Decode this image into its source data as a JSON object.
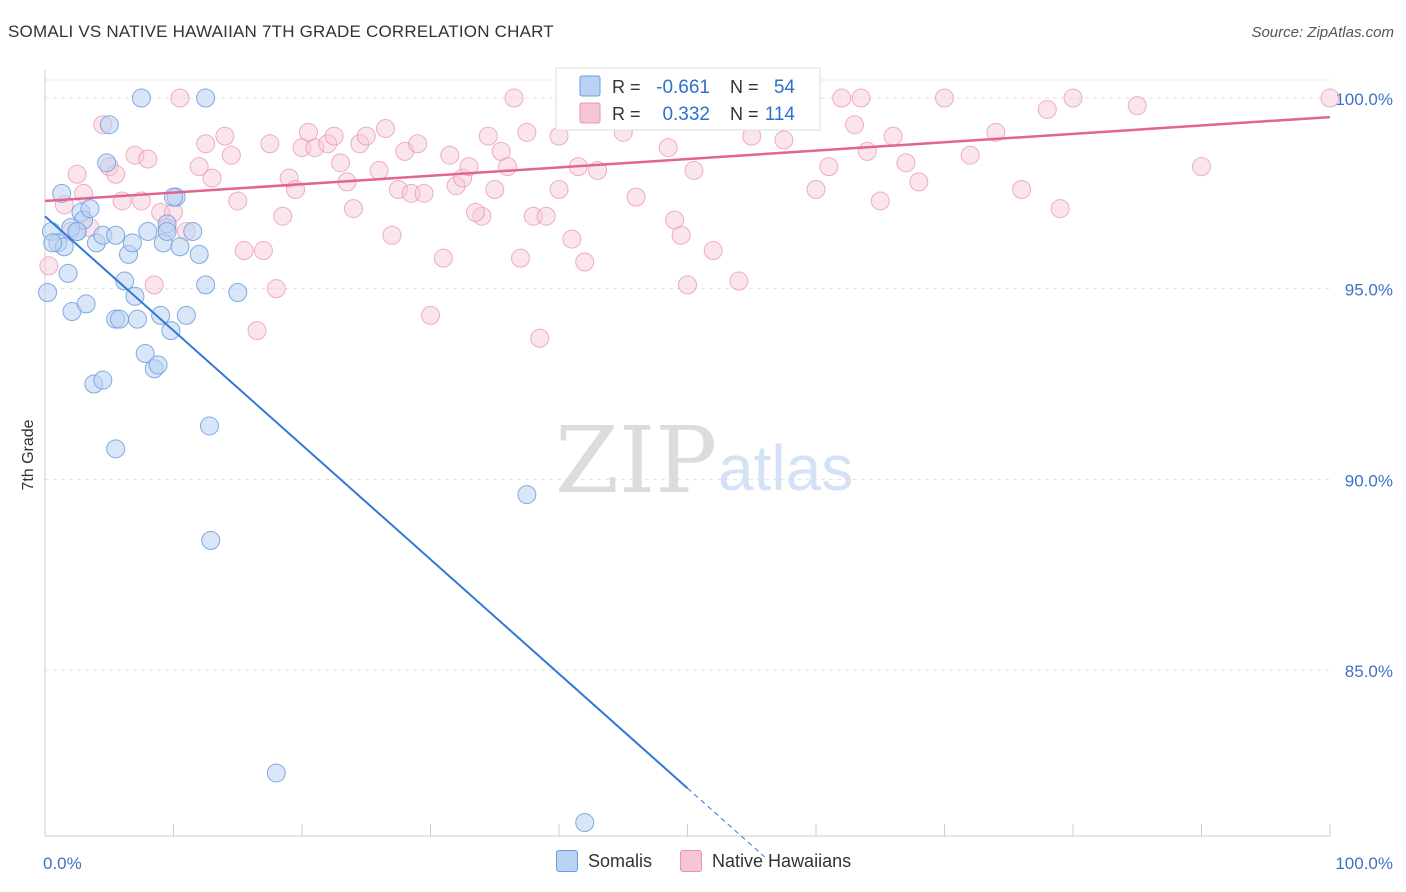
{
  "title": "SOMALI VS NATIVE HAWAIIAN 7TH GRADE CORRELATION CHART",
  "source": "Source: ZipAtlas.com",
  "watermark": {
    "zip": "ZIP",
    "atlas": "atlas"
  },
  "chart_data": {
    "type": "scatter",
    "xlabel": "",
    "ylabel": "7th Grade",
    "xlim": [
      0,
      100
    ],
    "ylim": [
      80,
      100.8
    ],
    "x_tick_labels": [
      {
        "value": 0,
        "label": "0.0%"
      },
      {
        "value": 100,
        "label": "100.0%"
      }
    ],
    "y_tick_labels": [
      {
        "value": 100,
        "label": "100.0%"
      },
      {
        "value": 95,
        "label": "95.0%"
      },
      {
        "value": 90,
        "label": "90.0%"
      },
      {
        "value": 85,
        "label": "85.0%"
      }
    ],
    "stats_box": [
      {
        "series": "Somalis",
        "r_label": "R =",
        "r": "-0.661",
        "n_label": "N =",
        "n": "54"
      },
      {
        "series": "Native Hawaiians",
        "r_label": "R =",
        "r": "0.332",
        "n_label": "N =",
        "n": "114"
      }
    ],
    "series": [
      {
        "name": "Somalis",
        "color": "#6b9ee0",
        "fill": "#b9d1f3",
        "line_color": "#2e79d6",
        "trend": {
          "x0": 0,
          "y0": 96.9,
          "x1": 50,
          "y1": 81.9,
          "dash_to_x": 56,
          "dash_to_y": 80.1
        },
        "points": [
          [
            0.5,
            96.5
          ],
          [
            1.0,
            96.2
          ],
          [
            0.2,
            94.9
          ],
          [
            1.3,
            97.5
          ],
          [
            1.8,
            95.4
          ],
          [
            2.1,
            94.4
          ],
          [
            2.5,
            96.5
          ],
          [
            2.8,
            97.0
          ],
          [
            3.0,
            96.8
          ],
          [
            3.2,
            94.6
          ],
          [
            3.5,
            97.1
          ],
          [
            4.0,
            96.2
          ],
          [
            4.5,
            96.4
          ],
          [
            4.8,
            98.3
          ],
          [
            5.0,
            99.3
          ],
          [
            5.5,
            94.2
          ],
          [
            5.8,
            94.2
          ],
          [
            6.2,
            95.2
          ],
          [
            6.5,
            95.9
          ],
          [
            6.8,
            96.2
          ],
          [
            7.0,
            94.8
          ],
          [
            7.2,
            94.2
          ],
          [
            7.5,
            100.0
          ],
          [
            7.8,
            93.3
          ],
          [
            8.0,
            96.5
          ],
          [
            8.5,
            92.9
          ],
          [
            8.8,
            93.0
          ],
          [
            9.0,
            94.3
          ],
          [
            9.2,
            96.2
          ],
          [
            9.5,
            96.7
          ],
          [
            9.8,
            93.9
          ],
          [
            10.2,
            97.4
          ],
          [
            10.5,
            96.1
          ],
          [
            11.0,
            94.3
          ],
          [
            11.5,
            96.5
          ],
          [
            12.0,
            95.9
          ],
          [
            12.5,
            100.0
          ],
          [
            1.5,
            96.1
          ],
          [
            2.0,
            96.6
          ],
          [
            3.8,
            92.5
          ],
          [
            4.5,
            92.6
          ],
          [
            5.5,
            90.8
          ],
          [
            12.5,
            95.1
          ],
          [
            12.8,
            91.4
          ],
          [
            12.9,
            88.4
          ],
          [
            15.0,
            94.9
          ],
          [
            18.0,
            82.3
          ],
          [
            37.5,
            89.6
          ],
          [
            42.0,
            81.0
          ],
          [
            0.6,
            96.2
          ],
          [
            2.5,
            96.5
          ],
          [
            5.5,
            96.4
          ],
          [
            10.0,
            97.4
          ],
          [
            9.5,
            96.5
          ]
        ]
      },
      {
        "name": "Native Hawaiians",
        "color": "#ec93b1",
        "fill": "#f7c6d6",
        "line_color": "#e06590",
        "trend": {
          "x0": 0,
          "y0": 97.3,
          "x1": 100,
          "y1": 99.5
        },
        "points": [
          [
            0.3,
            95.6
          ],
          [
            1.5,
            97.2
          ],
          [
            2.0,
            96.5
          ],
          [
            2.5,
            98.0
          ],
          [
            3.0,
            97.5
          ],
          [
            3.5,
            96.6
          ],
          [
            4.5,
            99.3
          ],
          [
            5.0,
            98.2
          ],
          [
            5.5,
            98.0
          ],
          [
            6.0,
            97.3
          ],
          [
            7.0,
            98.5
          ],
          [
            7.5,
            97.3
          ],
          [
            8.0,
            98.4
          ],
          [
            8.5,
            95.1
          ],
          [
            9.0,
            97.0
          ],
          [
            9.5,
            96.6
          ],
          [
            10.0,
            97.0
          ],
          [
            10.5,
            100.0
          ],
          [
            11.0,
            96.5
          ],
          [
            12.0,
            98.2
          ],
          [
            12.5,
            98.8
          ],
          [
            13.0,
            97.9
          ],
          [
            14.0,
            99.0
          ],
          [
            15.0,
            97.3
          ],
          [
            15.5,
            96.0
          ],
          [
            16.5,
            93.9
          ],
          [
            17.0,
            96.0
          ],
          [
            17.5,
            98.8
          ],
          [
            18.0,
            95.0
          ],
          [
            18.5,
            96.9
          ],
          [
            19.0,
            97.9
          ],
          [
            19.5,
            97.6
          ],
          [
            20.0,
            98.7
          ],
          [
            21.0,
            98.7
          ],
          [
            22.0,
            98.8
          ],
          [
            22.5,
            99.0
          ],
          [
            23.0,
            98.3
          ],
          [
            24.0,
            97.1
          ],
          [
            24.5,
            98.8
          ],
          [
            25.0,
            99.0
          ],
          [
            26.0,
            98.1
          ],
          [
            27.0,
            96.4
          ],
          [
            27.5,
            97.6
          ],
          [
            28.0,
            98.6
          ],
          [
            28.5,
            97.5
          ],
          [
            29.0,
            98.8
          ],
          [
            29.5,
            97.5
          ],
          [
            30.0,
            94.3
          ],
          [
            31.0,
            95.8
          ],
          [
            31.5,
            98.5
          ],
          [
            32.0,
            97.7
          ],
          [
            32.5,
            97.9
          ],
          [
            33.0,
            98.2
          ],
          [
            34.0,
            96.9
          ],
          [
            34.5,
            99.0
          ],
          [
            35.0,
            97.6
          ],
          [
            35.5,
            98.6
          ],
          [
            36.0,
            98.2
          ],
          [
            37.0,
            95.8
          ],
          [
            37.5,
            99.1
          ],
          [
            38.0,
            96.9
          ],
          [
            38.5,
            93.7
          ],
          [
            39.0,
            96.9
          ],
          [
            40.0,
            97.6
          ],
          [
            41.0,
            96.3
          ],
          [
            41.5,
            98.2
          ],
          [
            42.0,
            95.7
          ],
          [
            43.0,
            98.1
          ],
          [
            44.0,
            99.5
          ],
          [
            45.0,
            99.1
          ],
          [
            46.0,
            97.4
          ],
          [
            47.0,
            100.0
          ],
          [
            48.0,
            99.8
          ],
          [
            48.5,
            98.7
          ],
          [
            49.0,
            96.8
          ],
          [
            49.5,
            96.4
          ],
          [
            50.0,
            95.1
          ],
          [
            50.5,
            98.1
          ],
          [
            51.0,
            99.9
          ],
          [
            52.0,
            96.0
          ],
          [
            53.0,
            100.0
          ],
          [
            54.0,
            95.2
          ],
          [
            55.0,
            99.0
          ],
          [
            56.0,
            99.8
          ],
          [
            58.0,
            100.0
          ],
          [
            60.0,
            97.6
          ],
          [
            61.0,
            98.2
          ],
          [
            62.0,
            100.0
          ],
          [
            63.0,
            99.3
          ],
          [
            64.0,
            98.6
          ],
          [
            65.0,
            97.3
          ],
          [
            66.0,
            99.0
          ],
          [
            67.0,
            98.3
          ],
          [
            68.0,
            97.8
          ],
          [
            70.0,
            100.0
          ],
          [
            72.0,
            98.5
          ],
          [
            74.0,
            99.1
          ],
          [
            76.0,
            97.6
          ],
          [
            78.0,
            99.7
          ],
          [
            79.0,
            97.1
          ],
          [
            80.0,
            100.0
          ],
          [
            85.0,
            99.8
          ],
          [
            90.0,
            98.2
          ],
          [
            100.0,
            100.0
          ],
          [
            63.5,
            100.0
          ],
          [
            40.0,
            99.0
          ],
          [
            20.5,
            99.1
          ],
          [
            36.5,
            100.0
          ],
          [
            33.5,
            97.0
          ],
          [
            26.5,
            99.2
          ],
          [
            14.5,
            98.5
          ],
          [
            57.5,
            98.9
          ],
          [
            46.0,
            99.5
          ],
          [
            23.5,
            97.8
          ]
        ]
      }
    ]
  }
}
